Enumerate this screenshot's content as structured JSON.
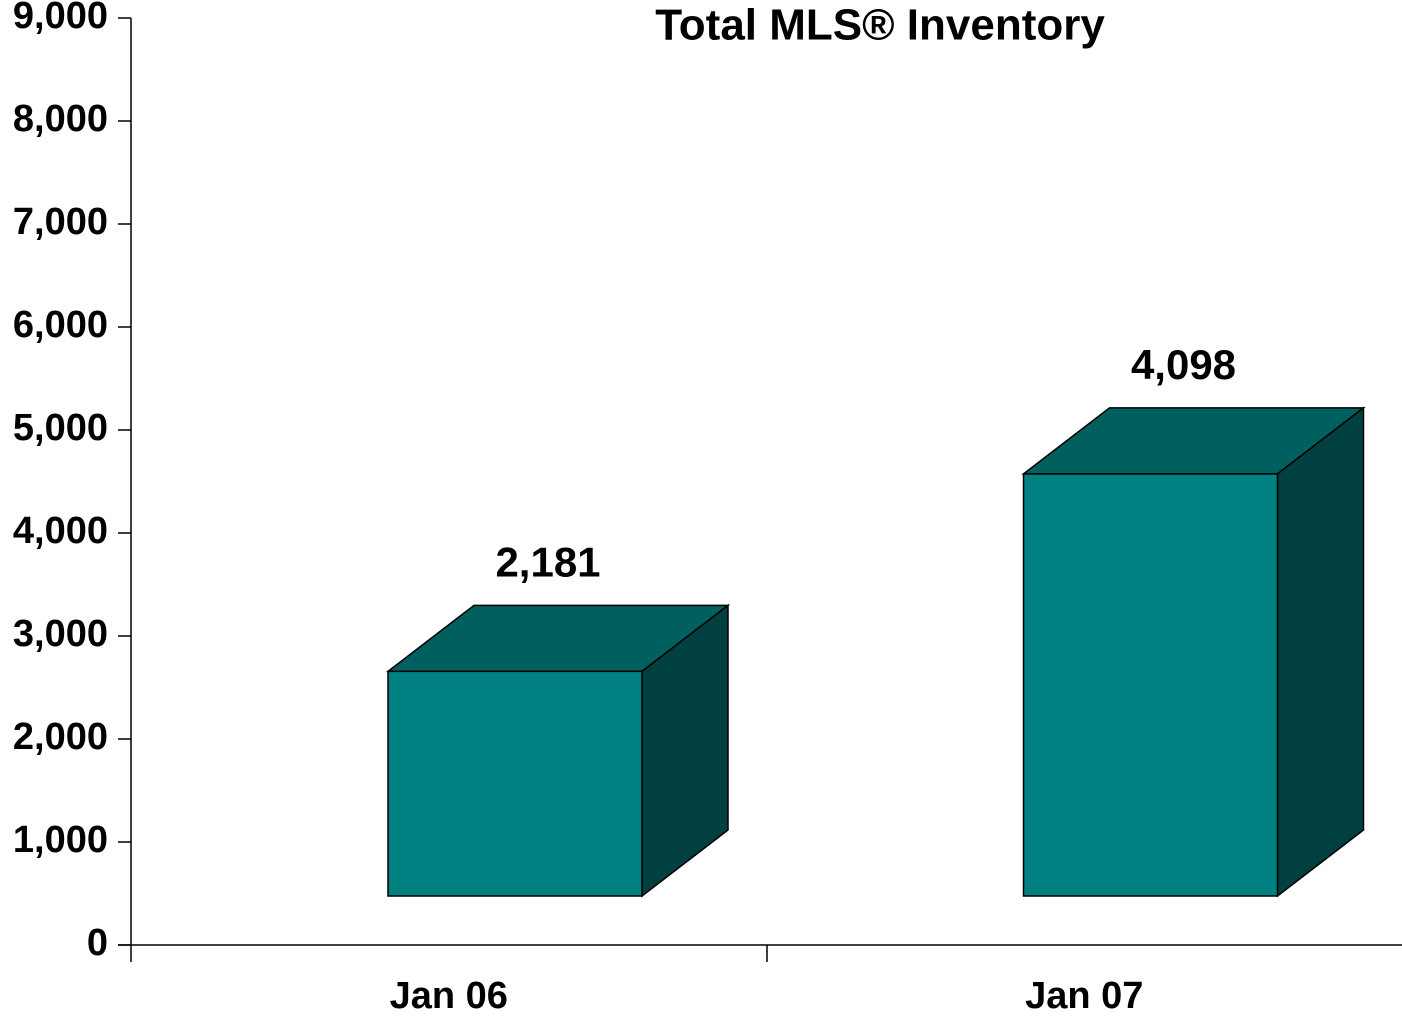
{
  "chart_data": {
    "type": "bar3d",
    "title": "Total MLS® Inventory",
    "categories": [
      "Jan 06",
      "Jan 07"
    ],
    "values": [
      2181,
      4098
    ],
    "value_labels": [
      "2,181",
      "4,098"
    ],
    "color": "#008080",
    "ylim": [
      0,
      9000
    ],
    "yticks": [
      0,
      {
        "value": 1000,
        "label": "1,000"
      },
      {
        "value": 2000,
        "label": "2,000"
      },
      {
        "value": 3000,
        "label": "3,000"
      },
      {
        "value": 4000,
        "label": "4,000"
      },
      {
        "value": 5000,
        "label": "5,000"
      },
      {
        "value": 6000,
        "label": "6,000"
      },
      {
        "value": 7000,
        "label": "7,000"
      },
      {
        "value": 8000,
        "label": "8,000"
      },
      {
        "value": 9000,
        "label": "9,000"
      }
    ]
  }
}
